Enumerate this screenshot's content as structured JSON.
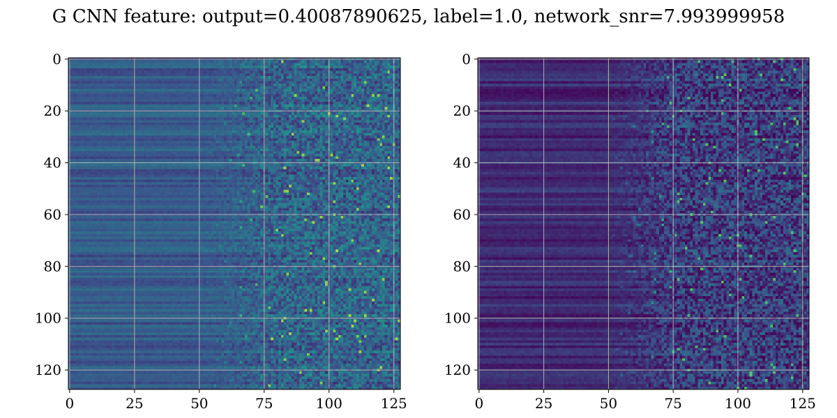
{
  "chart_data": {
    "type": "heatmap",
    "title": "G CNN feature: output=0.40087890625, label=1.0, network_snr=7.993999958",
    "grid": true,
    "colormap": "viridis",
    "colormap_stops": [
      "#440154",
      "#3b528b",
      "#21918c",
      "#5ec962",
      "#fde725"
    ],
    "panels": [
      {
        "name": "",
        "rows": 128,
        "cols": 128,
        "x_ticks": [
          0,
          25,
          50,
          75,
          100,
          125
        ],
        "y_ticks": [
          0,
          20,
          40,
          60,
          80,
          100,
          120
        ],
        "xlim": [
          -0.5,
          127.5
        ],
        "ylim": [
          127.5,
          -0.5
        ],
        "baseline_level": 0.28,
        "noise_level": 0.32,
        "noise_onset_col": 72
      },
      {
        "name": "",
        "rows": 128,
        "cols": 128,
        "x_ticks": [
          0,
          25,
          50,
          75,
          100,
          125
        ],
        "y_ticks": [
          0,
          20,
          40,
          60,
          80,
          100,
          120
        ],
        "xlim": [
          -0.5,
          127.5
        ],
        "ylim": [
          127.5,
          -0.5
        ],
        "baseline_level": 0.12,
        "noise_level": 0.35,
        "noise_onset_col": 70
      }
    ]
  }
}
